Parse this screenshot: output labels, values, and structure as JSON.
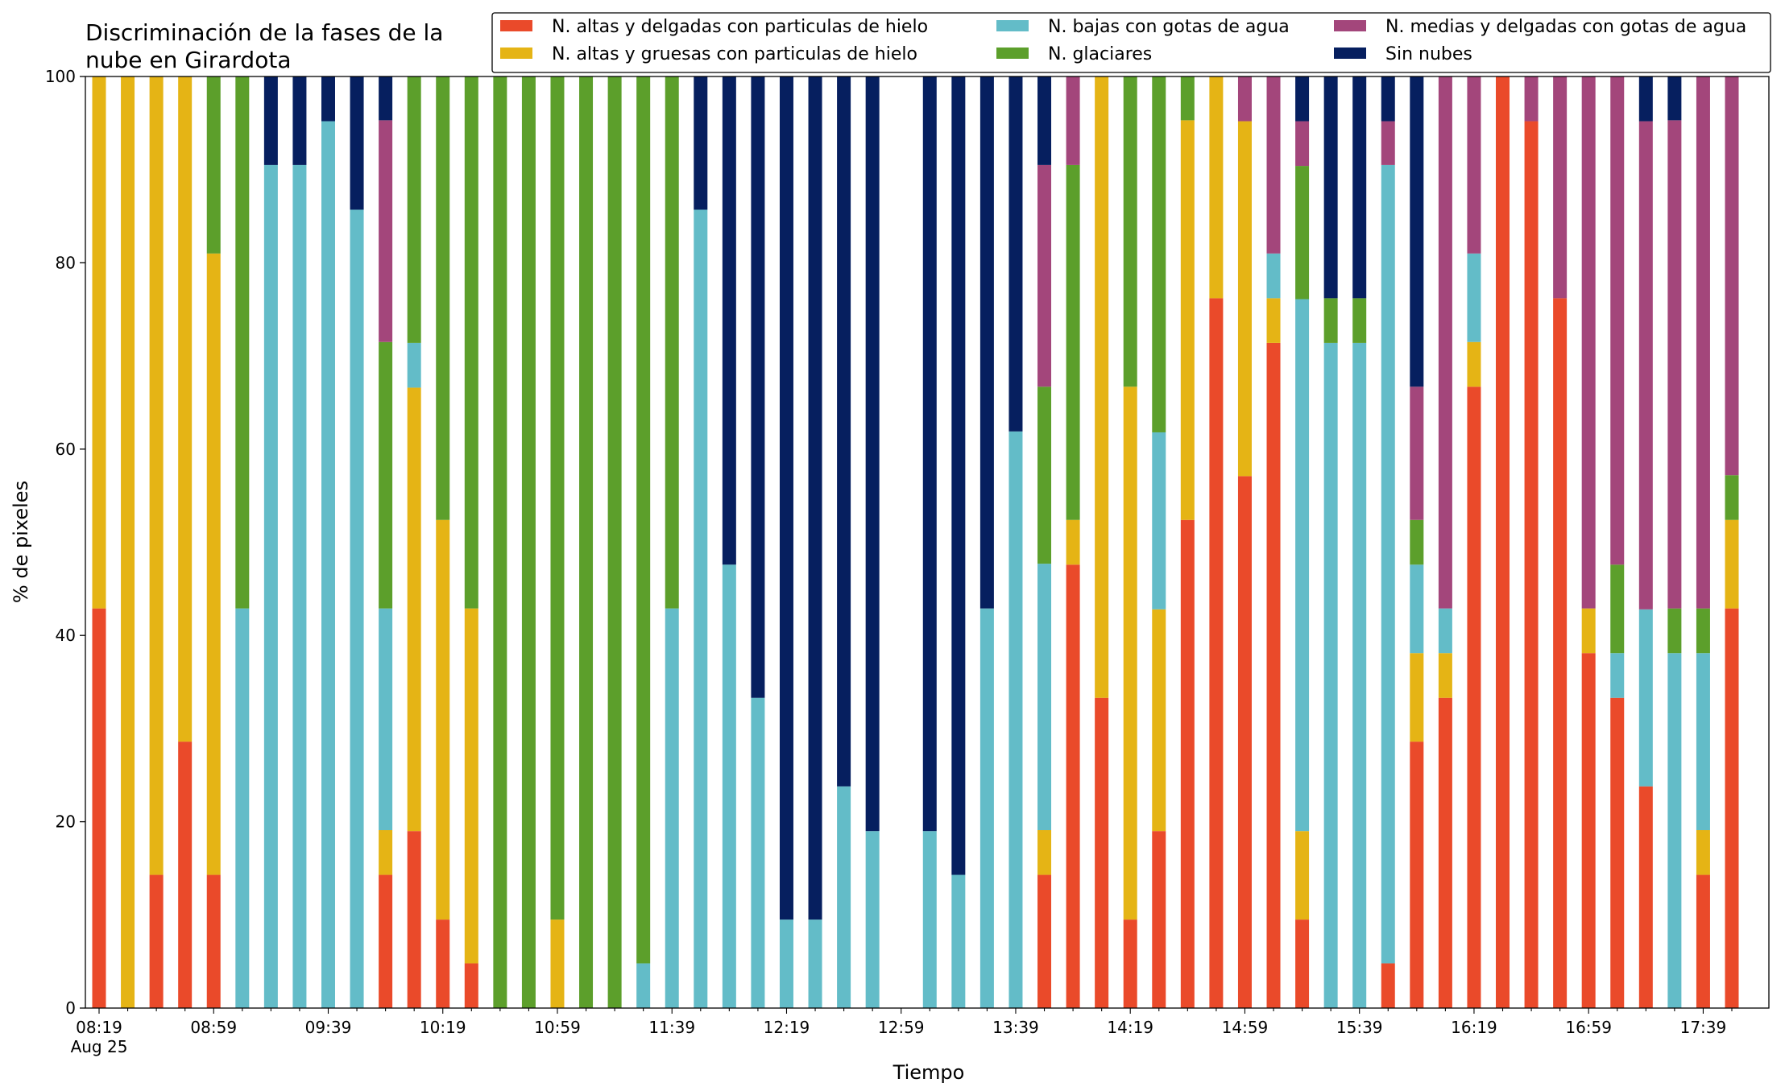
{
  "chart_data": {
    "type": "bar",
    "stacked": true,
    "title": "Discriminación de la fases de la nube en Girardota",
    "title_lines": [
      "Discriminación de la fases de la",
      "nube en Girardota"
    ],
    "xlabel": "Tiempo",
    "ylabel": "% de pixeles",
    "ylim": [
      0,
      100
    ],
    "yticks": [
      0,
      20,
      40,
      60,
      80,
      100
    ],
    "legend_position": "top-right",
    "x_start": "08:19",
    "x_step_minutes": 10,
    "n_slots": 58,
    "xtick_labels": [
      "08:19",
      "08:59",
      "09:39",
      "10:19",
      "10:59",
      "11:39",
      "12:19",
      "12:59",
      "13:39",
      "14:19",
      "14:59",
      "15:39",
      "16:19",
      "16:59",
      "17:39"
    ],
    "xtick_date": "Aug 25",
    "series": [
      {
        "name": "N. altas y delgadas con particulas de hielo",
        "color": "#ea4a2a"
      },
      {
        "name": "N. altas y gruesas con particulas de hielo",
        "color": "#e5b415"
      },
      {
        "name": "N. bajas con gotas de agua",
        "color": "#63bcc8"
      },
      {
        "name": "N. glaciares",
        "color": "#5c9f2b"
      },
      {
        "name": "N. medias y delgadas con gotas de agua",
        "color": "#a3467b"
      },
      {
        "name": "Sin nubes",
        "color": "#061f5f"
      }
    ],
    "bars": [
      {
        "time": "08:19",
        "values": [
          42.9,
          57.1,
          0,
          0,
          0,
          0
        ]
      },
      {
        "time": "08:29",
        "values": [
          0,
          100,
          0,
          0,
          0,
          0
        ]
      },
      {
        "time": "08:39",
        "values": [
          14.3,
          85.7,
          0,
          0,
          0,
          0
        ]
      },
      {
        "time": "08:49",
        "values": [
          28.6,
          71.4,
          0,
          0,
          0,
          0
        ]
      },
      {
        "time": "08:59",
        "values": [
          14.3,
          66.7,
          0,
          19.0,
          0,
          0
        ]
      },
      {
        "time": "09:09",
        "values": [
          0,
          0,
          42.9,
          57.1,
          0,
          0
        ]
      },
      {
        "time": "09:19",
        "values": [
          0,
          0,
          90.5,
          0,
          0,
          9.5
        ]
      },
      {
        "time": "09:29",
        "values": [
          0,
          0,
          90.5,
          0,
          0,
          9.5
        ]
      },
      {
        "time": "09:39",
        "values": [
          0,
          0,
          95.2,
          0,
          0,
          4.8
        ]
      },
      {
        "time": "09:49",
        "values": [
          0,
          0,
          85.7,
          0,
          0,
          14.3
        ]
      },
      {
        "time": "09:59",
        "values": [
          14.3,
          4.8,
          23.8,
          28.6,
          23.8,
          4.7
        ]
      },
      {
        "time": "10:09",
        "values": [
          19.0,
          47.6,
          4.8,
          28.6,
          0,
          0
        ]
      },
      {
        "time": "10:19",
        "values": [
          9.5,
          42.9,
          0,
          47.6,
          0,
          0
        ]
      },
      {
        "time": "10:29",
        "values": [
          4.8,
          38.1,
          0,
          57.1,
          0,
          0
        ]
      },
      {
        "time": "10:39",
        "values": [
          0,
          0,
          0,
          100,
          0,
          0
        ]
      },
      {
        "time": "10:49",
        "values": [
          0,
          0,
          0,
          100,
          0,
          0
        ]
      },
      {
        "time": "10:59",
        "values": [
          0,
          9.5,
          0,
          90.5,
          0,
          0
        ]
      },
      {
        "time": "11:09",
        "values": [
          0,
          0,
          0,
          100,
          0,
          0
        ]
      },
      {
        "time": "11:19",
        "values": [
          0,
          0,
          0,
          100,
          0,
          0
        ]
      },
      {
        "time": "11:29",
        "values": [
          0,
          0,
          4.8,
          95.2,
          0,
          0
        ]
      },
      {
        "time": "11:39",
        "values": [
          0,
          0,
          42.9,
          57.1,
          0,
          0
        ]
      },
      {
        "time": "11:49",
        "values": [
          0,
          0,
          85.7,
          0,
          0,
          14.3
        ]
      },
      {
        "time": "11:59",
        "values": [
          0,
          0,
          47.6,
          0,
          0,
          52.4
        ]
      },
      {
        "time": "12:09",
        "values": [
          0,
          0,
          33.3,
          0,
          0,
          66.7
        ]
      },
      {
        "time": "12:19",
        "values": [
          0,
          0,
          9.5,
          0,
          0,
          90.5
        ]
      },
      {
        "time": "12:29",
        "values": [
          0,
          0,
          9.5,
          0,
          0,
          90.5
        ]
      },
      {
        "time": "12:39",
        "values": [
          0,
          0,
          23.8,
          0,
          0,
          76.2
        ]
      },
      {
        "time": "12:49",
        "values": [
          0,
          0,
          19.0,
          0,
          0,
          81.0
        ]
      },
      {
        "time": "12:59",
        "values": [
          0,
          0,
          0,
          0,
          0,
          0
        ]
      },
      {
        "time": "13:09",
        "values": [
          0,
          0,
          19.0,
          0,
          0,
          81.0
        ]
      },
      {
        "time": "13:19",
        "values": [
          0,
          0,
          14.3,
          0,
          0,
          85.7
        ]
      },
      {
        "time": "13:29",
        "values": [
          0,
          0,
          42.9,
          0,
          0,
          57.1
        ]
      },
      {
        "time": "13:39",
        "values": [
          0,
          0,
          61.9,
          0,
          0,
          38.1
        ]
      },
      {
        "time": "13:49",
        "values": [
          14.3,
          4.8,
          28.6,
          19.0,
          23.8,
          9.5
        ]
      },
      {
        "time": "13:59",
        "values": [
          47.6,
          4.8,
          0,
          38.1,
          9.5,
          0
        ]
      },
      {
        "time": "14:09",
        "values": [
          33.3,
          66.7,
          0,
          0,
          0,
          0
        ]
      },
      {
        "time": "14:19",
        "values": [
          9.5,
          57.2,
          0,
          33.3,
          0,
          0
        ]
      },
      {
        "time": "14:29",
        "values": [
          19.0,
          23.8,
          19.0,
          38.2,
          0,
          0
        ]
      },
      {
        "time": "14:39",
        "values": [
          52.4,
          42.9,
          0,
          4.7,
          0,
          0
        ]
      },
      {
        "time": "14:49",
        "values": [
          76.2,
          23.8,
          0,
          0,
          0,
          0
        ]
      },
      {
        "time": "14:59",
        "values": [
          57.1,
          38.1,
          0,
          0,
          4.8,
          0
        ]
      },
      {
        "time": "15:09",
        "values": [
          71.4,
          4.8,
          4.8,
          0,
          19.0,
          0
        ]
      },
      {
        "time": "15:19",
        "values": [
          9.5,
          9.5,
          57.1,
          14.3,
          4.8,
          4.8
        ]
      },
      {
        "time": "15:29",
        "values": [
          0,
          0,
          71.4,
          4.8,
          0,
          23.8
        ]
      },
      {
        "time": "15:39",
        "values": [
          0,
          0,
          71.4,
          4.8,
          0,
          23.8
        ]
      },
      {
        "time": "15:49",
        "values": [
          4.8,
          0,
          85.7,
          0,
          4.7,
          4.8
        ]
      },
      {
        "time": "15:59",
        "values": [
          28.6,
          9.5,
          9.5,
          4.8,
          14.3,
          33.3
        ]
      },
      {
        "time": "16:09",
        "values": [
          33.3,
          4.8,
          4.8,
          0,
          57.1,
          0
        ]
      },
      {
        "time": "16:19",
        "values": [
          66.7,
          4.8,
          9.5,
          0,
          19.0,
          0
        ]
      },
      {
        "time": "16:29",
        "values": [
          100,
          0,
          0,
          0,
          0,
          0
        ]
      },
      {
        "time": "16:39",
        "values": [
          95.2,
          0,
          0,
          0,
          4.8,
          0
        ]
      },
      {
        "time": "16:49",
        "values": [
          76.2,
          0,
          0,
          0,
          23.8,
          0
        ]
      },
      {
        "time": "16:59",
        "values": [
          38.1,
          4.8,
          0,
          0,
          57.1,
          0
        ]
      },
      {
        "time": "17:09",
        "values": [
          33.3,
          0,
          4.8,
          9.5,
          52.4,
          0
        ]
      },
      {
        "time": "17:19",
        "values": [
          23.8,
          0,
          19.0,
          0,
          52.4,
          4.8
        ]
      },
      {
        "time": "17:29",
        "values": [
          0,
          0,
          38.1,
          4.8,
          52.4,
          4.7
        ]
      },
      {
        "time": "17:39",
        "values": [
          14.3,
          4.8,
          19.0,
          4.8,
          57.1,
          0
        ]
      },
      {
        "time": "17:49",
        "values": [
          42.9,
          9.5,
          0,
          4.8,
          42.8,
          0
        ]
      }
    ]
  }
}
